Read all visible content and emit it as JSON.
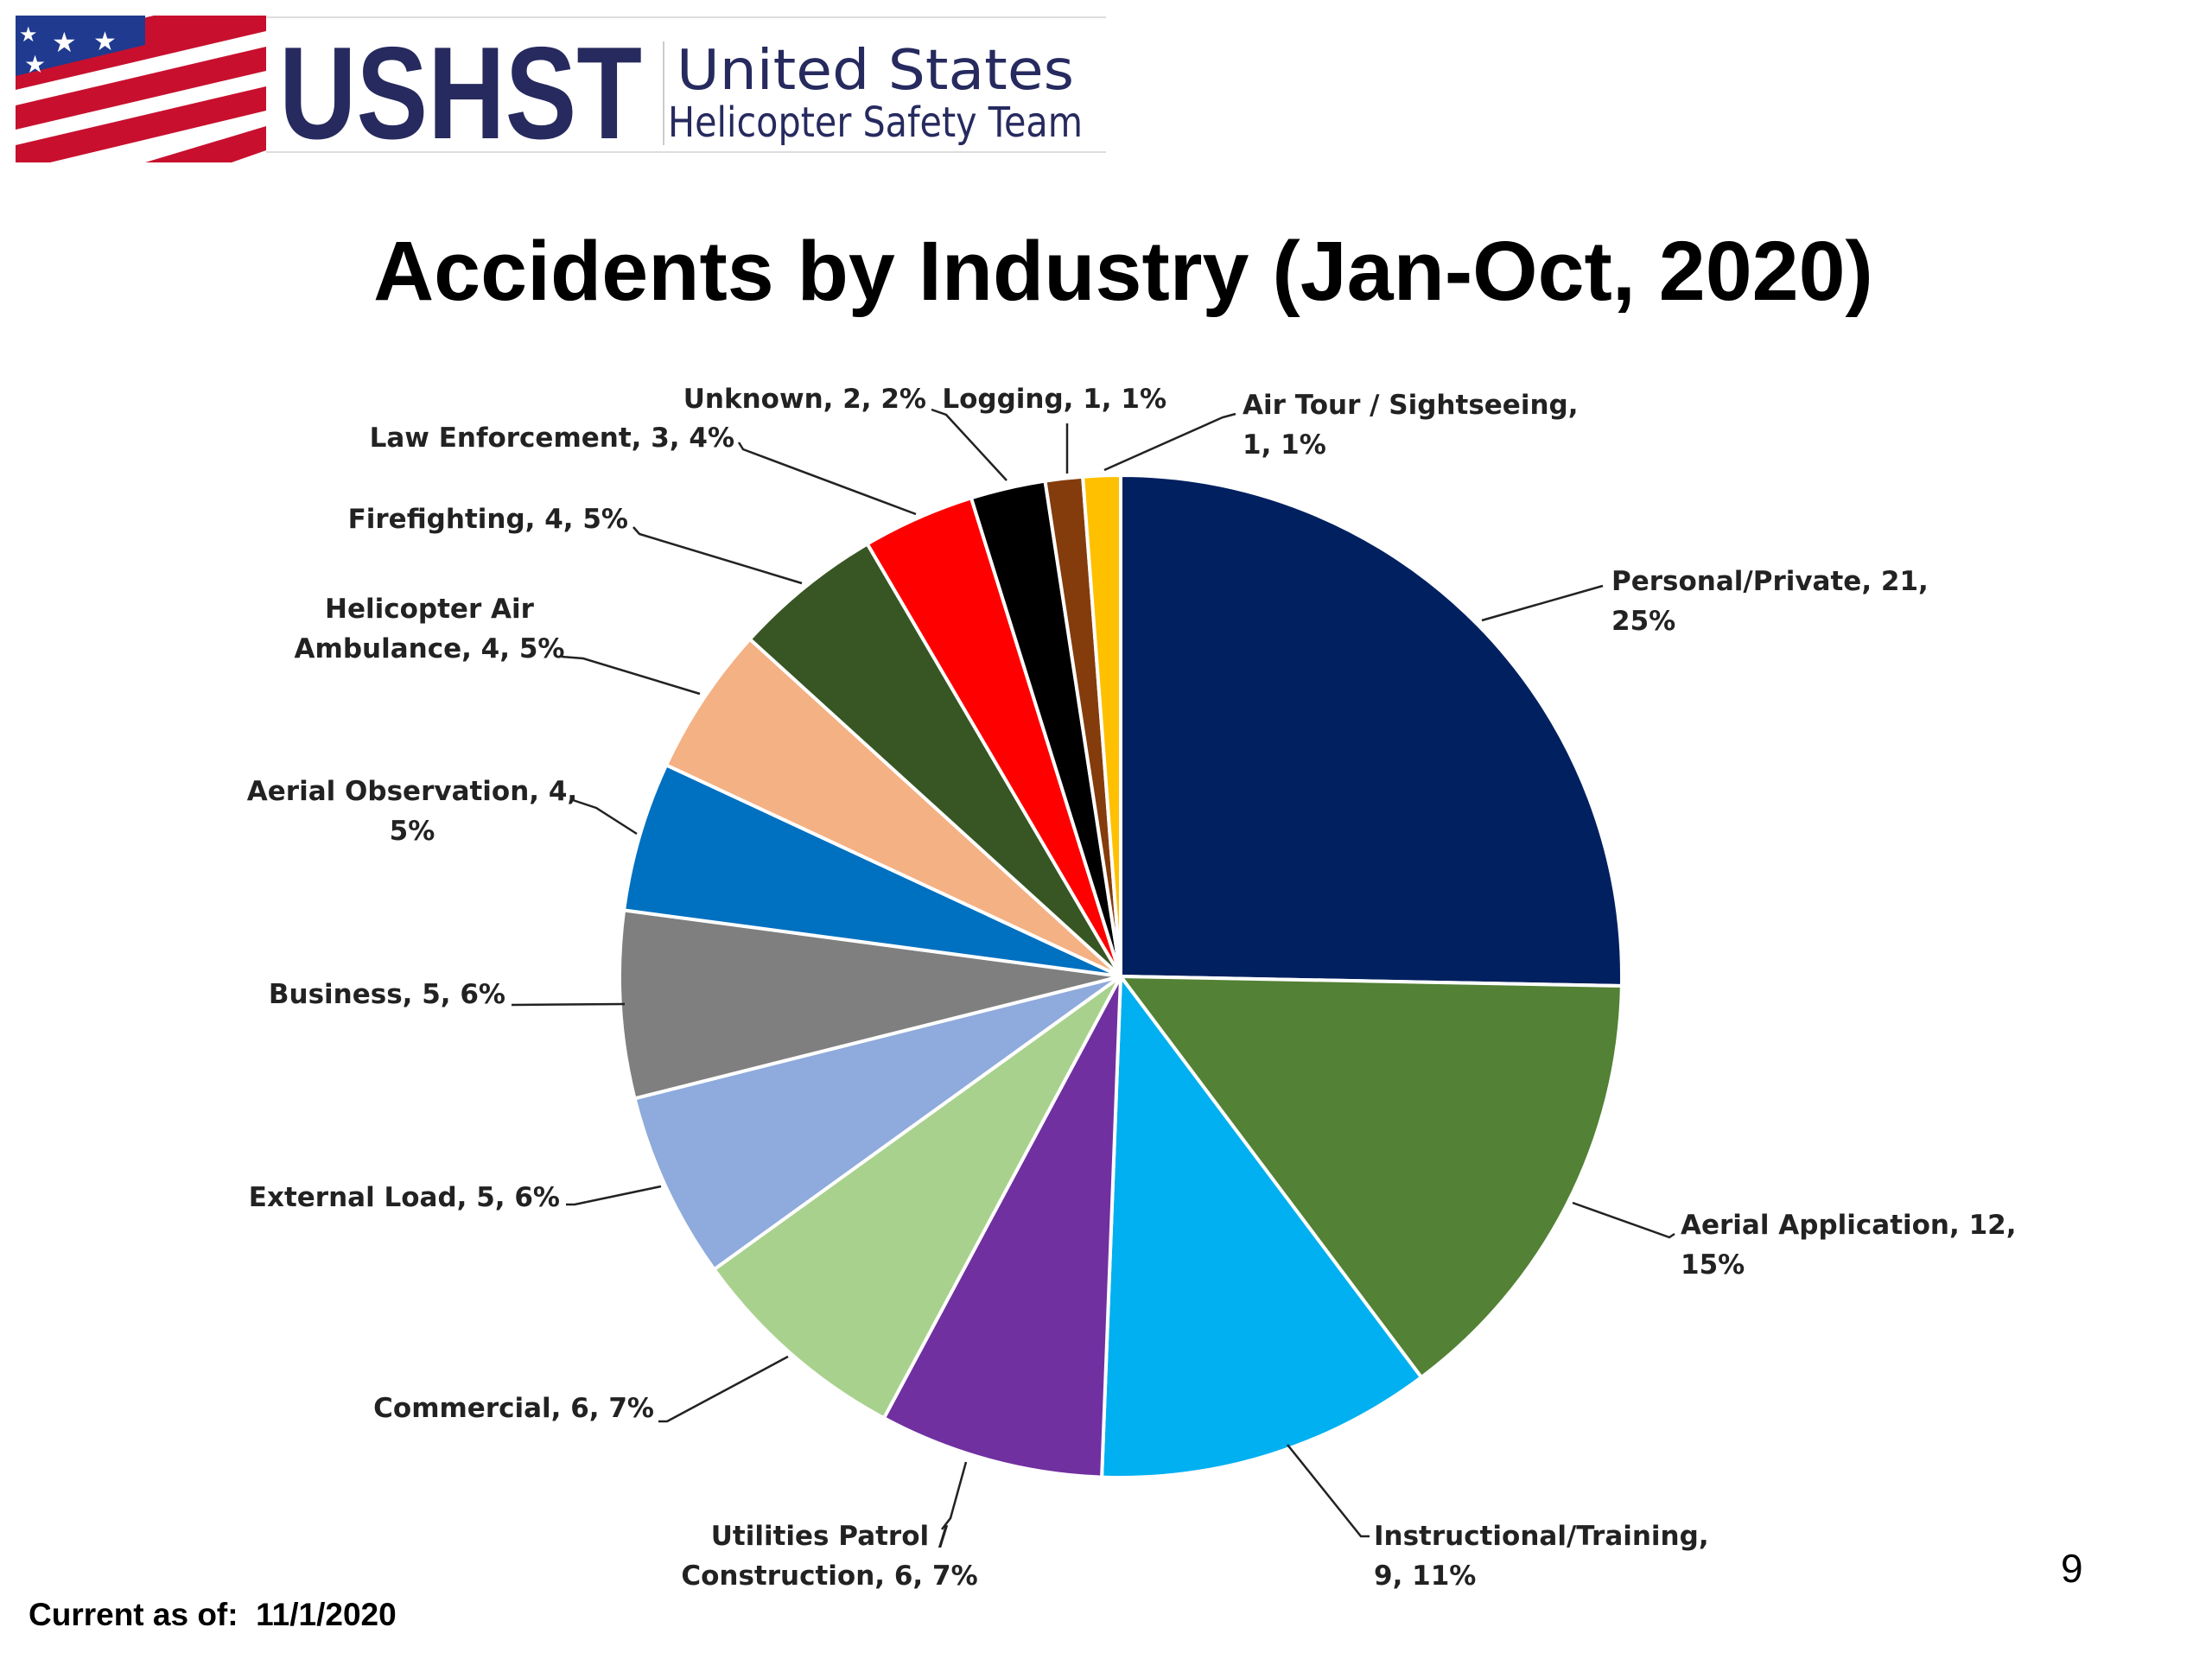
{
  "logo": {
    "abbreviation": "USHST",
    "name_line1": "United States",
    "name_line2": "Helicopter Safety Team"
  },
  "colors": {
    "brand_navy": "#262a5e",
    "flag_red": "#c8102e",
    "flag_blue": "#1f3a8f"
  },
  "footer": {
    "current_label": "Current as of:",
    "current_date": "11/1/2020",
    "page_number": "9"
  },
  "chart_data": {
    "type": "pie",
    "title": "Accidents by Industry (Jan-Oct, 2020)",
    "start": "12 o'clock, clockwise",
    "slices": [
      {
        "label": "Personal/Private",
        "value": 21,
        "percent": "25%",
        "color": "#002060",
        "text_lines": [
          "Personal/Private, 21,",
          "25%"
        ]
      },
      {
        "label": "Aerial Application",
        "value": 12,
        "percent": "15%",
        "color": "#538135",
        "text_lines": [
          "Aerial Application, 12,",
          "15%"
        ]
      },
      {
        "label": "Instructional/Training",
        "value": 9,
        "percent": "11%",
        "color": "#00b0f0",
        "text_lines": [
          "Instructional/Training,",
          "9, 11%"
        ]
      },
      {
        "label": "Utilities Patrol / Construction",
        "value": 6,
        "percent": "7%",
        "color": "#7030a0",
        "text_lines": [
          "Utilities Patrol /",
          "Construction, 6, 7%"
        ]
      },
      {
        "label": "Commercial",
        "value": 6,
        "percent": "7%",
        "color": "#a9d18e",
        "text_lines": [
          "Commercial, 6, 7%"
        ]
      },
      {
        "label": "External Load",
        "value": 5,
        "percent": "6%",
        "color": "#8faadc",
        "text_lines": [
          "External Load, 5, 6%"
        ]
      },
      {
        "label": "Business",
        "value": 5,
        "percent": "6%",
        "color": "#7f7f7f",
        "text_lines": [
          "Business, 5, 6%"
        ]
      },
      {
        "label": "Aerial Observation",
        "value": 4,
        "percent": "5%",
        "color": "#0070c0",
        "text_lines": [
          "Aerial Observation, 4,",
          "5%"
        ]
      },
      {
        "label": "Helicopter Air Ambulance",
        "value": 4,
        "percent": "5%",
        "color": "#f4b183",
        "text_lines": [
          "Helicopter Air",
          "Ambulance, 4, 5%"
        ]
      },
      {
        "label": "Firefighting",
        "value": 4,
        "percent": "5%",
        "color": "#375623",
        "text_lines": [
          "Firefighting, 4, 5%"
        ]
      },
      {
        "label": "Law Enforcement",
        "value": 3,
        "percent": "4%",
        "color": "#ff0000",
        "text_lines": [
          "Law Enforcement, 3, 4%"
        ]
      },
      {
        "label": "Unknown",
        "value": 2,
        "percent": "2%",
        "color": "#000000",
        "text_lines": [
          "Unknown, 2, 2%"
        ]
      },
      {
        "label": "Logging",
        "value": 1,
        "percent": "1%",
        "color": "#843c0c",
        "text_lines": [
          "Logging, 1, 1%"
        ]
      },
      {
        "label": "Air Tour / Sightseeing",
        "value": 1,
        "percent": "1%",
        "color": "#ffc000",
        "text_lines": [
          "Air Tour / Sightseeing,",
          "1, 1%"
        ]
      }
    ]
  }
}
